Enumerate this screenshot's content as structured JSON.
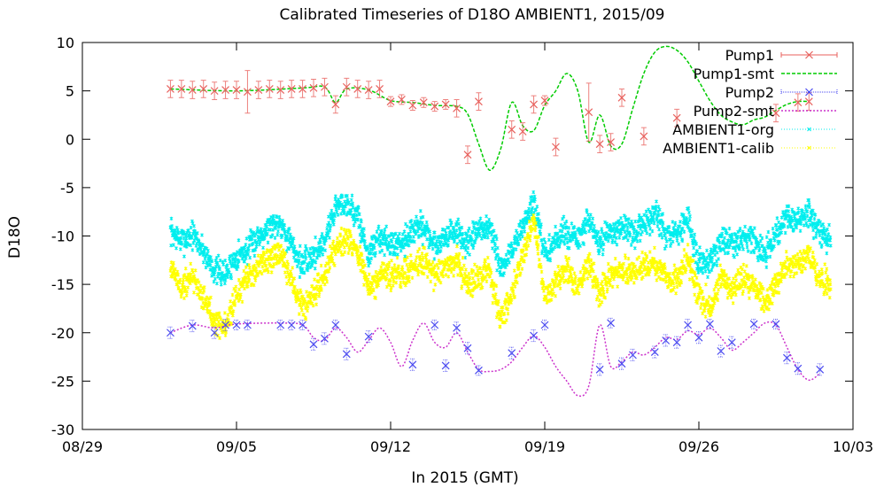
{
  "chart_data": {
    "type": "scatter",
    "title": "Calibrated Timeseries of D18O AMBIENT1, 2015/09",
    "xlabel": "In 2015 (GMT)",
    "ylabel": "D18O",
    "xlim": [
      "2015-08-29",
      "2015-10-03"
    ],
    "ylim": [
      -30,
      10
    ],
    "x_ticks": [
      "08/29",
      "09/05",
      "09/12",
      "09/19",
      "09/26",
      "10/03"
    ],
    "y_ticks": [
      10,
      5,
      0,
      -5,
      -10,
      -15,
      -20,
      -25,
      -30
    ],
    "grid": false,
    "legend_position": "top-right",
    "colors": {
      "Pump1": "#e8625e",
      "Pump1-smt": "#00cc00",
      "Pump2": "#4a4af0",
      "Pump2-smt": "#cc33cc",
      "AMBIENT1-org": "#00eeee",
      "AMBIENT1-calib": "#ffff00"
    },
    "series": [
      {
        "name": "Pump1",
        "style": "points-errorbars",
        "x": [
          "2015-09-02 00:00",
          "2015-09-02 12:00",
          "2015-09-03 00:00",
          "2015-09-03 12:00",
          "2015-09-04 00:00",
          "2015-09-04 12:00",
          "2015-09-05 00:00",
          "2015-09-05 12:00",
          "2015-09-06 00:00",
          "2015-09-06 12:00",
          "2015-09-07 00:00",
          "2015-09-07 12:00",
          "2015-09-08 00:00",
          "2015-09-08 12:00",
          "2015-09-09 00:00",
          "2015-09-09 12:00",
          "2015-09-10 00:00",
          "2015-09-10 12:00",
          "2015-09-11 00:00",
          "2015-09-11 12:00",
          "2015-09-12 00:00",
          "2015-09-12 12:00",
          "2015-09-13 00:00",
          "2015-09-13 12:00",
          "2015-09-14 00:00",
          "2015-09-14 12:00",
          "2015-09-15 00:00",
          "2015-09-15 12:00",
          "2015-09-16 00:00",
          "2015-09-17 12:00",
          "2015-09-18 00:00",
          "2015-09-18 12:00",
          "2015-09-19 00:00",
          "2015-09-19 12:00",
          "2015-09-21 00:00",
          "2015-09-21 12:00",
          "2015-09-22 00:00",
          "2015-09-22 12:00",
          "2015-09-23 12:00",
          "2015-09-25 00:00",
          "2015-09-29 12:00",
          "2015-09-30 12:00",
          "2015-10-01 00:00"
        ],
        "y": [
          5.2,
          5.2,
          5.1,
          5.2,
          5.0,
          5.1,
          5.1,
          4.9,
          5.1,
          5.2,
          5.1,
          5.2,
          5.2,
          5.3,
          5.4,
          3.6,
          5.4,
          5.2,
          5.1,
          5.2,
          3.9,
          4.1,
          3.5,
          3.8,
          3.4,
          3.6,
          3.2,
          -1.6,
          3.9,
          1.0,
          0.8,
          3.6,
          4.0,
          -0.8,
          2.8,
          -0.5,
          -0.3,
          4.3,
          0.3,
          2.2,
          2.7,
          3.8,
          3.9
        ],
        "yerr": [
          0.9,
          0.9,
          0.9,
          0.9,
          0.9,
          0.9,
          0.9,
          2.2,
          0.9,
          0.9,
          0.9,
          0.9,
          0.9,
          0.9,
          0.9,
          0.9,
          0.9,
          0.9,
          0.9,
          0.9,
          0.5,
          0.5,
          0.5,
          0.5,
          0.5,
          0.5,
          0.9,
          0.9,
          0.9,
          0.9,
          0.9,
          0.9,
          0.5,
          0.9,
          3.0,
          0.9,
          0.9,
          0.9,
          0.9,
          0.9,
          0.9,
          0.9,
          0.9
        ]
      },
      {
        "name": "Pump1-smt",
        "style": "line-dashed",
        "x": [
          "2015-09-02 00:00",
          "2015-09-05 00:00",
          "2015-09-08 00:00",
          "2015-09-09 00:00",
          "2015-09-09 12:00",
          "2015-09-10 00:00",
          "2015-09-11 00:00",
          "2015-09-12 00:00",
          "2015-09-13 00:00",
          "2015-09-14 00:00",
          "2015-09-15 00:00",
          "2015-09-15 12:00",
          "2015-09-16 00:00",
          "2015-09-16 12:00",
          "2015-09-17 00:00",
          "2015-09-17 12:00",
          "2015-09-18 00:00",
          "2015-09-18 12:00",
          "2015-09-19 00:00",
          "2015-09-19 12:00",
          "2015-09-20 00:00",
          "2015-09-20 12:00",
          "2015-09-21 00:00",
          "2015-09-21 12:00",
          "2015-09-22 00:00",
          "2015-09-22 12:00",
          "2015-09-23 00:00",
          "2015-09-23 12:00",
          "2015-09-24 00:00",
          "2015-09-24 12:00",
          "2015-09-25 00:00",
          "2015-09-25 12:00",
          "2015-09-26 00:00",
          "2015-09-26 12:00",
          "2015-09-27 00:00",
          "2015-09-27 12:00",
          "2015-09-28 00:00",
          "2015-09-28 12:00",
          "2015-09-29 00:00",
          "2015-09-29 12:00",
          "2015-09-30 00:00",
          "2015-09-30 12:00",
          "2015-10-01 00:00"
        ],
        "y": [
          5.2,
          5.0,
          5.3,
          5.4,
          3.8,
          5.2,
          5.1,
          4.0,
          3.8,
          3.5,
          3.4,
          2.6,
          -0.5,
          -3.2,
          -1.0,
          3.8,
          1.4,
          0.9,
          3.5,
          5.0,
          6.8,
          5.0,
          -0.3,
          2.5,
          -0.7,
          -0.5,
          3.2,
          6.8,
          9.0,
          9.6,
          9.2,
          8.0,
          6.0,
          4.0,
          2.5,
          1.8,
          1.5,
          2.0,
          2.3,
          3.0,
          3.6,
          3.9,
          3.9
        ]
      },
      {
        "name": "Pump2",
        "style": "points-errorbars",
        "x": [
          "2015-09-02 00:00",
          "2015-09-03 00:00",
          "2015-09-04 00:00",
          "2015-09-04 12:00",
          "2015-09-05 00:00",
          "2015-09-05 12:00",
          "2015-09-07 00:00",
          "2015-09-07 12:00",
          "2015-09-08 00:00",
          "2015-09-08 12:00",
          "2015-09-09 00:00",
          "2015-09-09 12:00",
          "2015-09-10 00:00",
          "2015-09-11 00:00",
          "2015-09-13 00:00",
          "2015-09-14 00:00",
          "2015-09-14 12:00",
          "2015-09-15 00:00",
          "2015-09-15 12:00",
          "2015-09-16 00:00",
          "2015-09-17 12:00",
          "2015-09-18 12:00",
          "2015-09-19 00:00",
          "2015-09-21 12:00",
          "2015-09-22 00:00",
          "2015-09-22 12:00",
          "2015-09-23 00:00",
          "2015-09-24 00:00",
          "2015-09-24 12:00",
          "2015-09-25 00:00",
          "2015-09-25 12:00",
          "2015-09-26 00:00",
          "2015-09-26 12:00",
          "2015-09-27 00:00",
          "2015-09-27 12:00",
          "2015-09-28 12:00",
          "2015-09-29 12:00",
          "2015-09-30 00:00",
          "2015-09-30 12:00",
          "2015-10-01 12:00"
        ],
        "y": [
          -20.0,
          -19.3,
          -20.0,
          -19.2,
          -19.2,
          -19.2,
          -19.2,
          -19.2,
          -19.2,
          -21.2,
          -20.6,
          -19.2,
          -22.2,
          -20.4,
          -23.3,
          -19.2,
          -23.4,
          -19.5,
          -21.6,
          -23.9,
          -22.1,
          -20.3,
          -19.2,
          -23.8,
          -19.0,
          -23.2,
          -22.3,
          -22.0,
          -20.8,
          -21.0,
          -19.2,
          -20.5,
          -19.1,
          -21.9,
          -21.0,
          -19.1,
          -19.1,
          -22.6,
          -23.7,
          -23.8
        ],
        "yerr": [
          0.6,
          0.6,
          0.6,
          0.6,
          0.5,
          0.5,
          0.5,
          0.5,
          0.5,
          0.6,
          0.6,
          0.5,
          0.6,
          0.6,
          0.6,
          0.5,
          0.6,
          0.6,
          0.6,
          0.5,
          0.6,
          0.6,
          0.5,
          0.6,
          0.5,
          0.6,
          0.6,
          0.6,
          0.6,
          0.6,
          0.6,
          0.6,
          0.5,
          0.6,
          0.6,
          0.5,
          0.5,
          0.6,
          0.6,
          0.6
        ]
      },
      {
        "name": "Pump2-smt",
        "style": "line-dotted",
        "x": [
          "2015-09-02 00:00",
          "2015-09-03 00:00",
          "2015-09-04 00:00",
          "2015-09-05 00:00",
          "2015-09-07 00:00",
          "2015-09-08 00:00",
          "2015-09-08 12:00",
          "2015-09-09 00:00",
          "2015-09-09 12:00",
          "2015-09-10 00:00",
          "2015-09-10 12:00",
          "2015-09-11 00:00",
          "2015-09-11 12:00",
          "2015-09-12 00:00",
          "2015-09-12 12:00",
          "2015-09-13 00:00",
          "2015-09-13 12:00",
          "2015-09-14 00:00",
          "2015-09-14 12:00",
          "2015-09-15 00:00",
          "2015-09-15 12:00",
          "2015-09-16 00:00",
          "2015-09-16 12:00",
          "2015-09-17 00:00",
          "2015-09-17 12:00",
          "2015-09-18 00:00",
          "2015-09-18 12:00",
          "2015-09-19 00:00",
          "2015-09-19 12:00",
          "2015-09-20 00:00",
          "2015-09-20 12:00",
          "2015-09-21 00:00",
          "2015-09-21 12:00",
          "2015-09-22 00:00",
          "2015-09-22 12:00",
          "2015-09-23 00:00",
          "2015-09-23 12:00",
          "2015-09-24 00:00",
          "2015-09-24 12:00",
          "2015-09-25 00:00",
          "2015-09-25 12:00",
          "2015-09-26 00:00",
          "2015-09-26 12:00",
          "2015-09-27 00:00",
          "2015-09-27 12:00",
          "2015-09-28 00:00",
          "2015-09-28 12:00",
          "2015-09-29 00:00",
          "2015-09-29 12:00",
          "2015-09-30 00:00",
          "2015-09-30 12:00",
          "2015-10-01 00:00",
          "2015-10-01 12:00"
        ],
        "y": [
          -20.0,
          -19.2,
          -19.5,
          -19.1,
          -19.0,
          -19.2,
          -20.5,
          -20.8,
          -19.5,
          -20.5,
          -22.0,
          -20.8,
          -19.5,
          -21.0,
          -23.5,
          -20.8,
          -19.0,
          -21.0,
          -21.5,
          -20.0,
          -22.0,
          -23.8,
          -24.0,
          -23.8,
          -23.0,
          -21.5,
          -20.3,
          -21.5,
          -23.5,
          -25.0,
          -26.5,
          -25.5,
          -19.2,
          -23.5,
          -23.0,
          -22.0,
          -22.3,
          -21.5,
          -20.5,
          -20.7,
          -19.8,
          -20.2,
          -19.5,
          -20.5,
          -21.8,
          -21.0,
          -20.0,
          -19.0,
          -19.2,
          -21.5,
          -23.8,
          -24.9,
          -24.2
        ]
      },
      {
        "name": "AMBIENT1-org",
        "style": "points-dense",
        "x": [
          "2015-09-02 00:00",
          "2015-09-02 12:00",
          "2015-09-03 00:00",
          "2015-09-03 12:00",
          "2015-09-04 00:00",
          "2015-09-04 12:00",
          "2015-09-05 00:00",
          "2015-09-05 12:00",
          "2015-09-06 00:00",
          "2015-09-06 12:00",
          "2015-09-07 00:00",
          "2015-09-07 12:00",
          "2015-09-08 00:00",
          "2015-09-08 12:00",
          "2015-09-09 00:00",
          "2015-09-09 12:00",
          "2015-09-10 00:00",
          "2015-09-10 12:00",
          "2015-09-11 00:00",
          "2015-09-11 12:00",
          "2015-09-12 00:00",
          "2015-09-12 12:00",
          "2015-09-13 00:00",
          "2015-09-13 12:00",
          "2015-09-14 00:00",
          "2015-09-14 12:00",
          "2015-09-15 00:00",
          "2015-09-15 12:00",
          "2015-09-16 00:00",
          "2015-09-16 12:00",
          "2015-09-17 00:00",
          "2015-09-17 12:00",
          "2015-09-18 00:00",
          "2015-09-18 12:00",
          "2015-09-19 00:00",
          "2015-09-19 12:00",
          "2015-09-20 00:00",
          "2015-09-20 12:00",
          "2015-09-21 00:00",
          "2015-09-21 12:00",
          "2015-09-22 00:00",
          "2015-09-22 12:00",
          "2015-09-23 00:00",
          "2015-09-23 12:00",
          "2015-09-24 00:00",
          "2015-09-24 12:00",
          "2015-09-25 00:00",
          "2015-09-25 12:00",
          "2015-09-26 00:00",
          "2015-09-26 12:00",
          "2015-09-27 00:00",
          "2015-09-27 12:00",
          "2015-09-28 00:00",
          "2015-09-28 12:00",
          "2015-09-29 00:00",
          "2015-09-29 12:00",
          "2015-09-30 00:00",
          "2015-09-30 12:00",
          "2015-10-01 00:00",
          "2015-10-01 12:00",
          "2015-10-02 00:00"
        ],
        "y": [
          -9.5,
          -10.5,
          -9.8,
          -11.5,
          -13.5,
          -14.0,
          -12.0,
          -11.5,
          -10.0,
          -9.0,
          -8.5,
          -11.0,
          -13.0,
          -12.0,
          -10.5,
          -7.0,
          -6.5,
          -8.0,
          -12.0,
          -10.0,
          -11.0,
          -10.5,
          -9.5,
          -9.0,
          -11.0,
          -10.0,
          -9.5,
          -11.0,
          -9.5,
          -9.0,
          -13.5,
          -11.5,
          -9.0,
          -6.5,
          -12.0,
          -10.5,
          -9.5,
          -10.5,
          -8.5,
          -11.0,
          -9.5,
          -9.0,
          -10.0,
          -9.0,
          -7.5,
          -10.0,
          -10.0,
          -8.0,
          -13.0,
          -12.5,
          -10.5,
          -11.0,
          -10.0,
          -10.5,
          -12.0,
          -10.0,
          -8.0,
          -8.5,
          -7.5,
          -10.0,
          -10.5
        ]
      },
      {
        "name": "AMBIENT1-calib",
        "style": "points-dense",
        "x": [
          "2015-09-02 00:00",
          "2015-09-02 12:00",
          "2015-09-03 00:00",
          "2015-09-03 12:00",
          "2015-09-04 00:00",
          "2015-09-04 12:00",
          "2015-09-05 00:00",
          "2015-09-05 12:00",
          "2015-09-06 00:00",
          "2015-09-06 12:00",
          "2015-09-07 00:00",
          "2015-09-07 12:00",
          "2015-09-08 00:00",
          "2015-09-08 12:00",
          "2015-09-09 00:00",
          "2015-09-09 12:00",
          "2015-09-10 00:00",
          "2015-09-10 12:00",
          "2015-09-11 00:00",
          "2015-09-11 12:00",
          "2015-09-12 00:00",
          "2015-09-12 12:00",
          "2015-09-13 00:00",
          "2015-09-13 12:00",
          "2015-09-14 00:00",
          "2015-09-14 12:00",
          "2015-09-15 00:00",
          "2015-09-15 12:00",
          "2015-09-16 00:00",
          "2015-09-16 12:00",
          "2015-09-17 00:00",
          "2015-09-17 12:00",
          "2015-09-18 00:00",
          "2015-09-18 12:00",
          "2015-09-19 00:00",
          "2015-09-19 12:00",
          "2015-09-20 00:00",
          "2015-09-20 12:00",
          "2015-09-21 00:00",
          "2015-09-21 12:00",
          "2015-09-22 00:00",
          "2015-09-22 12:00",
          "2015-09-23 00:00",
          "2015-09-23 12:00",
          "2015-09-24 00:00",
          "2015-09-24 12:00",
          "2015-09-25 00:00",
          "2015-09-25 12:00",
          "2015-09-26 00:00",
          "2015-09-26 12:00",
          "2015-09-27 00:00",
          "2015-09-27 12:00",
          "2015-09-28 00:00",
          "2015-09-28 12:00",
          "2015-09-29 00:00",
          "2015-09-29 12:00",
          "2015-09-30 00:00",
          "2015-09-30 12:00",
          "2015-10-01 00:00",
          "2015-10-01 12:00",
          "2015-10-02 00:00"
        ],
        "y": [
          -13.0,
          -15.5,
          -14.0,
          -16.5,
          -18.5,
          -19.5,
          -16.0,
          -14.5,
          -13.0,
          -12.5,
          -12.0,
          -14.5,
          -17.5,
          -16.5,
          -14.0,
          -11.0,
          -10.0,
          -11.5,
          -15.5,
          -14.5,
          -14.0,
          -14.0,
          -13.5,
          -12.5,
          -14.0,
          -13.0,
          -12.5,
          -15.0,
          -14.5,
          -13.5,
          -18.5,
          -16.0,
          -12.0,
          -8.0,
          -16.5,
          -14.5,
          -13.5,
          -15.5,
          -12.5,
          -16.0,
          -14.0,
          -13.5,
          -14.0,
          -13.0,
          -12.5,
          -14.5,
          -14.5,
          -12.0,
          -16.0,
          -17.5,
          -14.5,
          -15.5,
          -14.5,
          -15.0,
          -17.0,
          -15.0,
          -13.0,
          -13.0,
          -12.0,
          -14.5,
          -15.0
        ]
      }
    ]
  }
}
